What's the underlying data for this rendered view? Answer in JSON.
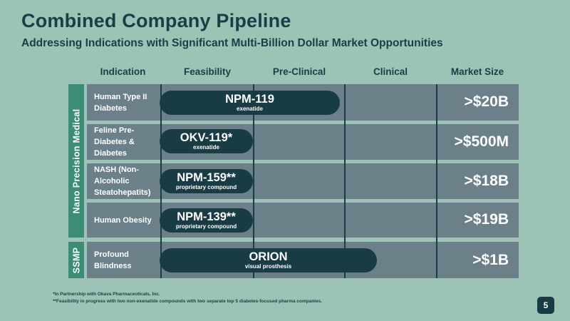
{
  "header": {
    "title": "Combined Company Pipeline",
    "subtitle": "Addressing Indications with Significant Multi-Billion Dollar Market Opportunities"
  },
  "columns": {
    "indication": "Indication",
    "feasibility": "Feasibility",
    "preclinical": "Pre-Clinical",
    "clinical": "Clinical",
    "market_size": "Market Size"
  },
  "groups": {
    "npm": "Nano Precision Medical",
    "ssmp": "SSMP"
  },
  "rows": [
    {
      "indication": "Human Type II Diabetes",
      "program": "NPM-119",
      "detail": "exenatide",
      "market": ">$20B"
    },
    {
      "indication": "Feline Pre-Diabetes & Diabetes",
      "program": "OKV-119*",
      "detail": "exenatide",
      "market": ">$500M"
    },
    {
      "indication": "NASH (Non-Alcoholic Steatohepatits)",
      "program": "NPM-159**",
      "detail": "proprietary compound",
      "market": ">$18B"
    },
    {
      "indication": "Human Obesity",
      "program": "NPM-139**",
      "detail": "proprietary compound",
      "market": ">$19B"
    },
    {
      "indication": "Profound Blindness",
      "program": "ORION",
      "detail": "visual prosthesis",
      "market": ">$1B"
    }
  ],
  "footnotes": {
    "f1": "*In Partnership with Okava Pharmaceuticals, Inc.",
    "f2": "**Feasibility in progress with two non-exenatide compounds with two separate top 5 diabetes-focused pharma companies."
  },
  "page_number": "5",
  "colors": {
    "background": "#9dc3b6",
    "row": "#6b8089",
    "pill": "#183b44",
    "group_bar": "#3d8d76",
    "text_dark": "#173f47"
  }
}
